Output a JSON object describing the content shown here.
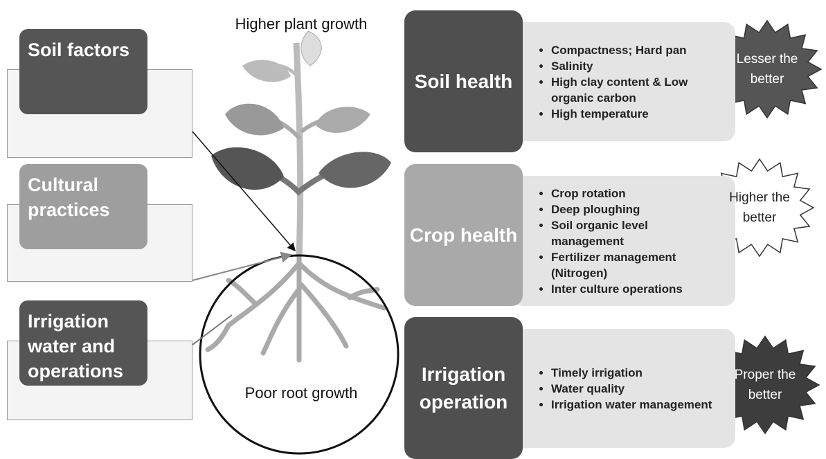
{
  "factors": [
    {
      "label": "Soil factors"
    },
    {
      "label": "Cultural practices"
    },
    {
      "label": "Irrigation water and operations"
    }
  ],
  "plant": {
    "top_label": "Higher plant growth",
    "bottom_label": "Poor root growth"
  },
  "panels": [
    {
      "title": "Soil health",
      "items": [
        "Compactness; Hard pan",
        "Salinity",
        "High clay content & Low organic carbon",
        "High temperature"
      ],
      "badge": "Lesser the better"
    },
    {
      "title": "Crop health",
      "items": [
        "Crop rotation",
        "Deep ploughing",
        "Soil organic level management",
        "Fertilizer management (Nitrogen)",
        "Inter culture operations"
      ],
      "badge": "Higher the better"
    },
    {
      "title": "Irrigation operation",
      "items": [
        "Timely irrigation",
        "Water quality",
        "Irrigation water management"
      ],
      "badge": "Proper the better"
    }
  ]
}
